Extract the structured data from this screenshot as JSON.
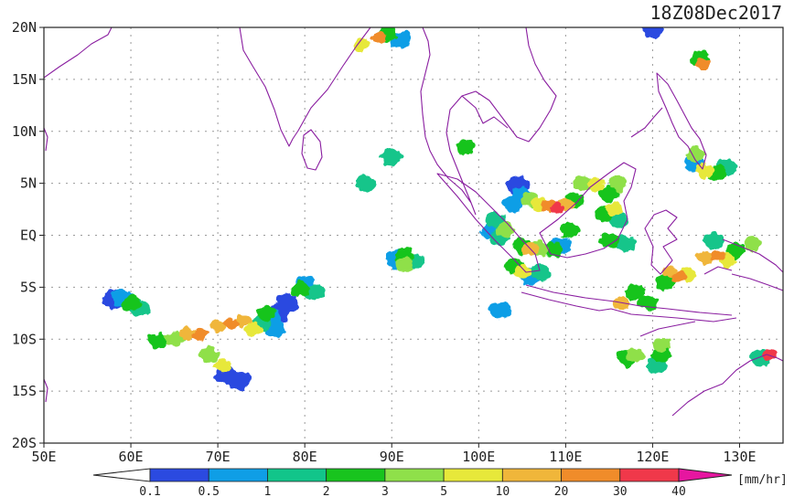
{
  "title": "18Z08Dec2017",
  "lat_labels": [
    "20N",
    "15N",
    "10N",
    "5N",
    "EQ",
    "5S",
    "10S",
    "15S",
    "20S"
  ],
  "lon_labels": [
    "50E",
    "60E",
    "70E",
    "80E",
    "90E",
    "100E",
    "110E",
    "120E",
    "130E"
  ],
  "extent": {
    "lon": [
      50,
      135
    ],
    "lat": [
      -20,
      20
    ]
  },
  "colorbar": {
    "unit": "[mm/hr]",
    "ticks": [
      "0.1",
      "0.5",
      "1",
      "2",
      "3",
      "5",
      "10",
      "20",
      "30",
      "40"
    ],
    "colors": [
      "#2b4ae0",
      "#0f9ee6",
      "#12c58a",
      "#18c41e",
      "#8fe04a",
      "#e7e83a",
      "#f0b63a",
      "#f08c2a",
      "#f0384a",
      "#e616a0"
    ]
  },
  "colors": {
    "coast": "#8a1ea0",
    "grid": "#9a9a9a"
  },
  "rain_cells": [
    {
      "lon": 88.5,
      "lat": 19.0,
      "lvl": 7
    },
    {
      "lon": 89.5,
      "lat": 19.3,
      "lvl": 3
    },
    {
      "lon": 91.0,
      "lat": 18.8,
      "lvl": 1
    },
    {
      "lon": 86.5,
      "lat": 18.3,
      "lvl": 5
    },
    {
      "lon": 125.5,
      "lat": 17.0,
      "lvl": 3
    },
    {
      "lon": 125.8,
      "lat": 16.5,
      "lvl": 7
    },
    {
      "lon": 120.0,
      "lat": 19.8,
      "lvl": 0
    },
    {
      "lon": 125.0,
      "lat": 7.8,
      "lvl": 4
    },
    {
      "lon": 124.8,
      "lat": 7.0,
      "lvl": 1
    },
    {
      "lon": 126.0,
      "lat": 6.2,
      "lvl": 5
    },
    {
      "lon": 127.5,
      "lat": 6.0,
      "lvl": 3
    },
    {
      "lon": 128.5,
      "lat": 6.5,
      "lvl": 2
    },
    {
      "lon": 108.0,
      "lat": 2.8,
      "lvl": 7
    },
    {
      "lon": 109.0,
      "lat": 2.6,
      "lvl": 8
    },
    {
      "lon": 107.0,
      "lat": 3.0,
      "lvl": 5
    },
    {
      "lon": 110.0,
      "lat": 3.0,
      "lvl": 6
    },
    {
      "lon": 111.0,
      "lat": 3.3,
      "lvl": 3
    },
    {
      "lon": 104.5,
      "lat": 4.8,
      "lvl": 0
    },
    {
      "lon": 105.0,
      "lat": 3.8,
      "lvl": 1
    },
    {
      "lon": 106.0,
      "lat": 3.5,
      "lvl": 4
    },
    {
      "lon": 104.0,
      "lat": 3.0,
      "lvl": 1
    },
    {
      "lon": 112.0,
      "lat": 5.0,
      "lvl": 4
    },
    {
      "lon": 113.5,
      "lat": 4.8,
      "lvl": 5
    },
    {
      "lon": 115.0,
      "lat": 4.0,
      "lvl": 3
    },
    {
      "lon": 116.0,
      "lat": 5.0,
      "lvl": 4
    },
    {
      "lon": 114.5,
      "lat": 2.0,
      "lvl": 3
    },
    {
      "lon": 115.5,
      "lat": 2.5,
      "lvl": 5
    },
    {
      "lon": 116.0,
      "lat": 1.5,
      "lvl": 2
    },
    {
      "lon": 102.0,
      "lat": 1.5,
      "lvl": 2
    },
    {
      "lon": 103.0,
      "lat": 0.5,
      "lvl": 4
    },
    {
      "lon": 102.5,
      "lat": -0.2,
      "lvl": 2
    },
    {
      "lon": 101.5,
      "lat": 0.5,
      "lvl": 1
    },
    {
      "lon": 105.0,
      "lat": -1.0,
      "lvl": 3
    },
    {
      "lon": 106.0,
      "lat": -1.3,
      "lvl": 6
    },
    {
      "lon": 107.0,
      "lat": -1.2,
      "lvl": 4
    },
    {
      "lon": 108.5,
      "lat": -1.4,
      "lvl": 3
    },
    {
      "lon": 109.5,
      "lat": -1.0,
      "lvl": 1
    },
    {
      "lon": 110.5,
      "lat": 0.5,
      "lvl": 3
    },
    {
      "lon": 104.0,
      "lat": -3.0,
      "lvl": 3
    },
    {
      "lon": 105.0,
      "lat": -3.5,
      "lvl": 5
    },
    {
      "lon": 106.0,
      "lat": -4.0,
      "lvl": 1
    },
    {
      "lon": 107.0,
      "lat": -3.6,
      "lvl": 2
    },
    {
      "lon": 115.0,
      "lat": -0.5,
      "lvl": 3
    },
    {
      "lon": 117.0,
      "lat": -0.8,
      "lvl": 2
    },
    {
      "lon": 122.0,
      "lat": -3.5,
      "lvl": 6
    },
    {
      "lon": 123.0,
      "lat": -4.0,
      "lvl": 7
    },
    {
      "lon": 124.0,
      "lat": -3.8,
      "lvl": 5
    },
    {
      "lon": 121.5,
      "lat": -4.5,
      "lvl": 3
    },
    {
      "lon": 126.0,
      "lat": -2.2,
      "lvl": 6
    },
    {
      "lon": 127.5,
      "lat": -2.0,
      "lvl": 7
    },
    {
      "lon": 128.5,
      "lat": -2.4,
      "lvl": 5
    },
    {
      "lon": 129.5,
      "lat": -1.5,
      "lvl": 3
    },
    {
      "lon": 131.5,
      "lat": -0.8,
      "lvl": 4
    },
    {
      "lon": 127.0,
      "lat": -0.5,
      "lvl": 2
    },
    {
      "lon": 118.0,
      "lat": -5.5,
      "lvl": 3
    },
    {
      "lon": 119.5,
      "lat": -6.5,
      "lvl": 3
    },
    {
      "lon": 116.5,
      "lat": -6.5,
      "lvl": 6
    },
    {
      "lon": 102.5,
      "lat": -7.2,
      "lvl": 1
    },
    {
      "lon": 121.0,
      "lat": -10.5,
      "lvl": 4
    },
    {
      "lon": 121.0,
      "lat": -11.5,
      "lvl": 3
    },
    {
      "lon": 120.5,
      "lat": -12.5,
      "lvl": 2
    },
    {
      "lon": 118.0,
      "lat": -11.5,
      "lvl": 4
    },
    {
      "lon": 117.0,
      "lat": -11.8,
      "lvl": 3
    },
    {
      "lon": 133.5,
      "lat": -11.5,
      "lvl": 8
    },
    {
      "lon": 132.5,
      "lat": -11.8,
      "lvl": 2
    },
    {
      "lon": 91.5,
      "lat": -2.0,
      "lvl": 3
    },
    {
      "lon": 91.5,
      "lat": -2.8,
      "lvl": 4
    },
    {
      "lon": 92.5,
      "lat": -2.5,
      "lvl": 2
    },
    {
      "lon": 90.5,
      "lat": -2.3,
      "lvl": 1
    },
    {
      "lon": 98.5,
      "lat": 8.5,
      "lvl": 3
    },
    {
      "lon": 87.0,
      "lat": 5.0,
      "lvl": 2
    },
    {
      "lon": 90.0,
      "lat": 7.5,
      "lvl": 2
    },
    {
      "lon": 63.0,
      "lat": -10.2,
      "lvl": 3
    },
    {
      "lon": 65.0,
      "lat": -10.0,
      "lvl": 4
    },
    {
      "lon": 66.5,
      "lat": -9.5,
      "lvl": 6
    },
    {
      "lon": 68.0,
      "lat": -9.5,
      "lvl": 7
    },
    {
      "lon": 70.0,
      "lat": -8.7,
      "lvl": 6
    },
    {
      "lon": 71.5,
      "lat": -8.5,
      "lvl": 7
    },
    {
      "lon": 73.0,
      "lat": -8.2,
      "lvl": 6
    },
    {
      "lon": 74.0,
      "lat": -9.0,
      "lvl": 5
    },
    {
      "lon": 75.0,
      "lat": -8.5,
      "lvl": 2
    },
    {
      "lon": 76.0,
      "lat": -8.0,
      "lvl": 1
    },
    {
      "lon": 77.0,
      "lat": -7.5,
      "lvl": 0
    },
    {
      "lon": 76.5,
      "lat": -9.0,
      "lvl": 1
    },
    {
      "lon": 75.5,
      "lat": -7.5,
      "lvl": 3
    },
    {
      "lon": 69.0,
      "lat": -11.5,
      "lvl": 4
    },
    {
      "lon": 70.5,
      "lat": -12.5,
      "lvl": 5
    },
    {
      "lon": 71.0,
      "lat": -13.5,
      "lvl": 0
    },
    {
      "lon": 72.5,
      "lat": -14.0,
      "lvl": 0
    },
    {
      "lon": 79.5,
      "lat": -5.2,
      "lvl": 3
    },
    {
      "lon": 80.0,
      "lat": -4.8,
      "lvl": 1
    },
    {
      "lon": 81.0,
      "lat": -5.5,
      "lvl": 2
    },
    {
      "lon": 78.0,
      "lat": -6.5,
      "lvl": 0
    },
    {
      "lon": 59.0,
      "lat": -6.0,
      "lvl": 1
    },
    {
      "lon": 60.0,
      "lat": -6.5,
      "lvl": 3
    },
    {
      "lon": 58.0,
      "lat": -6.2,
      "lvl": 0
    },
    {
      "lon": 61.0,
      "lat": -7.0,
      "lvl": 2
    }
  ]
}
